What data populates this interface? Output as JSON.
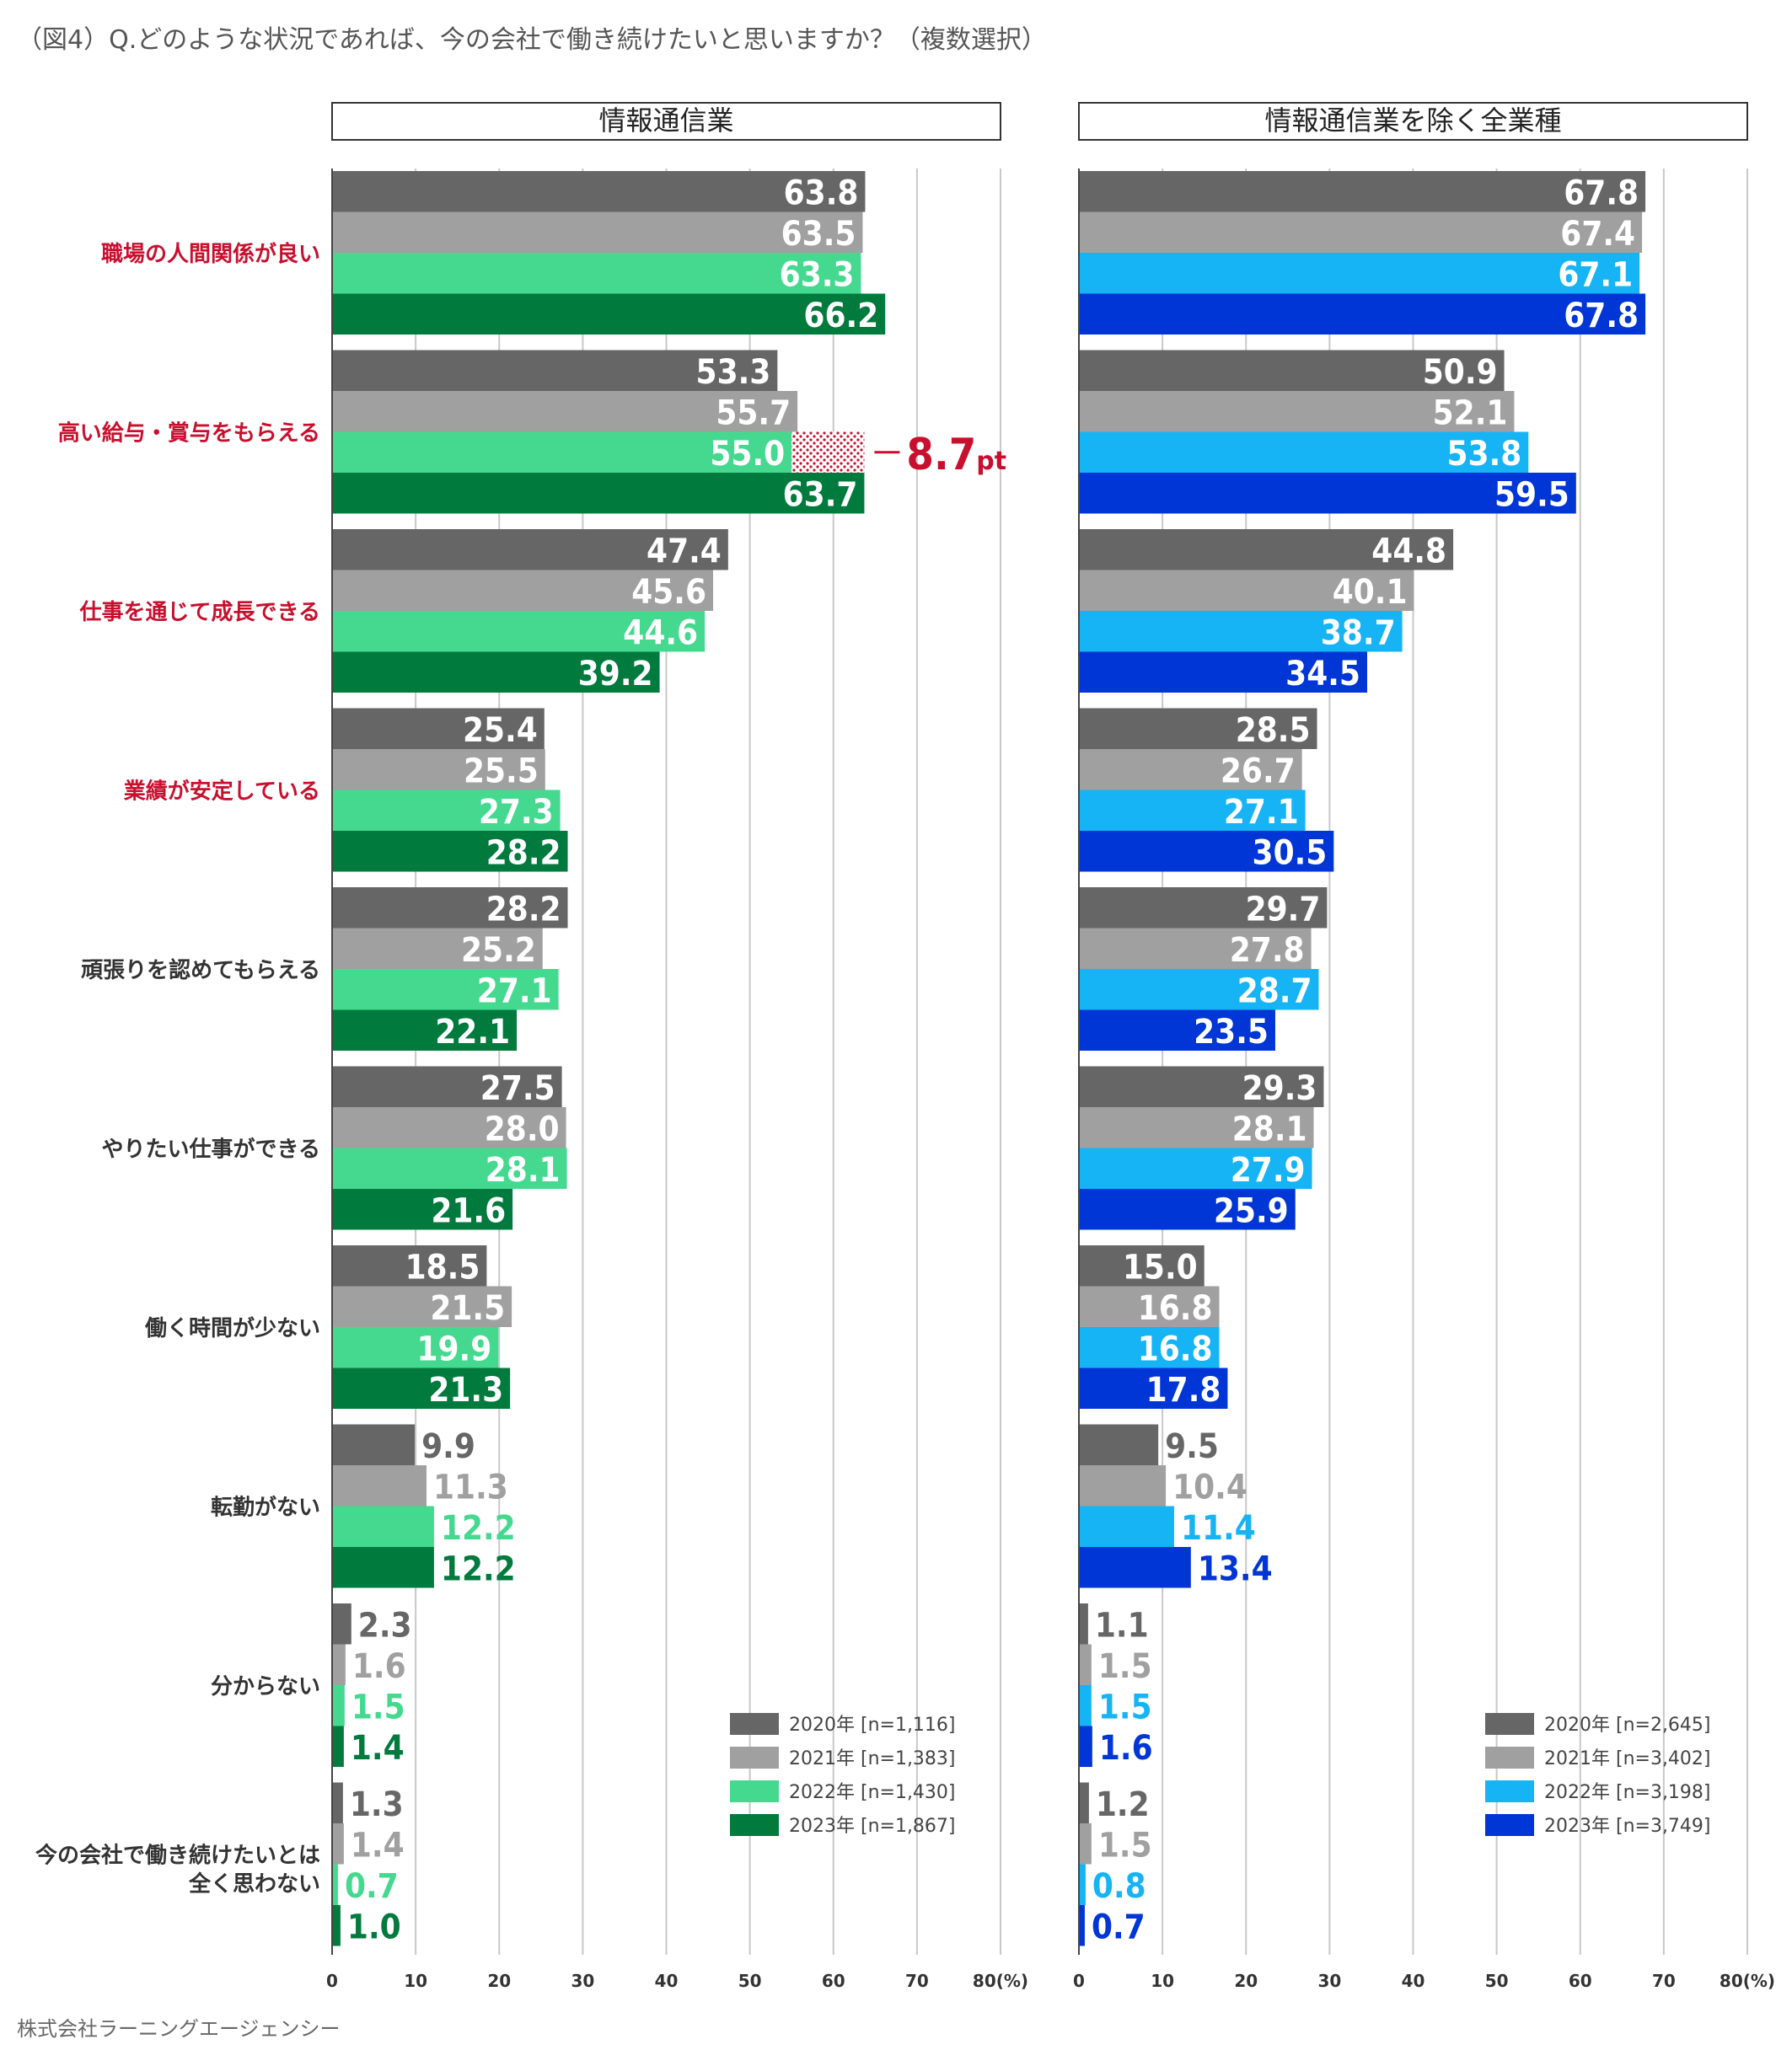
{
  "title": "（図4）Q.どのような状況であれば、今の会社で働き続けたいと思いますか？（複数選択）",
  "credit": "株式会社ラーニングエージェンシー",
  "chart_data": [
    {
      "type": "bar",
      "orientation": "horizontal",
      "title": "情報通信業",
      "categories": [
        "職場の人間関係が良い",
        "高い給与・賞与をもらえる",
        "仕事を通じて成長できる",
        "業績が安定している",
        "頑張りを認めてもらえる",
        "やりたい仕事ができる",
        "働く時間が少ない",
        "転勤がない",
        "分からない",
        "今の会社で働き続けたいとは全く思わない"
      ],
      "highlighted_categories": [
        0,
        1,
        2,
        3
      ],
      "series": [
        {
          "name": "2020年 [n=1,116]",
          "color": "#666666",
          "values": [
            63.8,
            53.3,
            47.4,
            25.4,
            28.2,
            27.5,
            18.5,
            9.9,
            2.3,
            1.3
          ]
        },
        {
          "name": "2021年 [n=1,383]",
          "color": "#a0a0a0",
          "values": [
            63.5,
            55.7,
            45.6,
            25.5,
            25.2,
            28.0,
            21.5,
            11.3,
            1.6,
            1.4
          ]
        },
        {
          "name": "2022年 [n=1,430]",
          "color": "#45d990",
          "values": [
            63.3,
            55.0,
            44.6,
            27.3,
            27.1,
            28.1,
            19.9,
            12.2,
            1.5,
            0.7
          ]
        },
        {
          "name": "2023年 [n=1,867]",
          "color": "#007a3d",
          "values": [
            66.2,
            63.7,
            39.2,
            28.2,
            22.1,
            21.6,
            21.3,
            12.2,
            1.4,
            1.0
          ]
        }
      ],
      "xlim": [
        0,
        80
      ],
      "xticks": [
        0,
        10,
        20,
        30,
        40,
        50,
        60,
        70,
        80
      ],
      "xtick_labels": [
        "0",
        "10",
        "20",
        "30",
        "40",
        "50",
        "60",
        "70",
        "80(%)"
      ],
      "annotation": {
        "category_index": 1,
        "from_series": 2,
        "to_series": 3,
        "value": "8.7",
        "unit": "pt"
      }
    },
    {
      "type": "bar",
      "orientation": "horizontal",
      "title": "情報通信業を除く全業種",
      "categories": [
        "職場の人間関係が良い",
        "高い給与・賞与をもらえる",
        "仕事を通じて成長できる",
        "業績が安定している",
        "頑張りを認めてもらえる",
        "やりたい仕事ができる",
        "働く時間が少ない",
        "転勤がない",
        "分からない",
        "今の会社で働き続けたいとは全く思わない"
      ],
      "series": [
        {
          "name": "2020年 [n=2,645]",
          "color": "#666666",
          "values": [
            67.8,
            50.9,
            44.8,
            28.5,
            29.7,
            29.3,
            15.0,
            9.5,
            1.1,
            1.2
          ]
        },
        {
          "name": "2021年 [n=3,402]",
          "color": "#a0a0a0",
          "values": [
            67.4,
            52.1,
            40.1,
            26.7,
            27.8,
            28.1,
            16.8,
            10.4,
            1.5,
            1.5
          ]
        },
        {
          "name": "2022年 [n=3,198]",
          "color": "#16b4f5",
          "values": [
            67.1,
            53.8,
            38.7,
            27.1,
            28.7,
            27.9,
            16.8,
            11.4,
            1.5,
            0.8
          ]
        },
        {
          "name": "2023年 [n=3,749]",
          "color": "#0035d6",
          "values": [
            67.8,
            59.5,
            34.5,
            30.5,
            23.5,
            25.9,
            17.8,
            13.4,
            1.6,
            0.7
          ]
        }
      ],
      "xlim": [
        0,
        80
      ],
      "xticks": [
        0,
        10,
        20,
        30,
        40,
        50,
        60,
        70,
        80
      ],
      "xtick_labels": [
        "0",
        "10",
        "20",
        "30",
        "40",
        "50",
        "60",
        "70",
        "80(%)"
      ]
    }
  ],
  "colors": {
    "highlight_label": "#c8102e",
    "normal_label": "#333333",
    "grid": "#c8c8c8"
  }
}
